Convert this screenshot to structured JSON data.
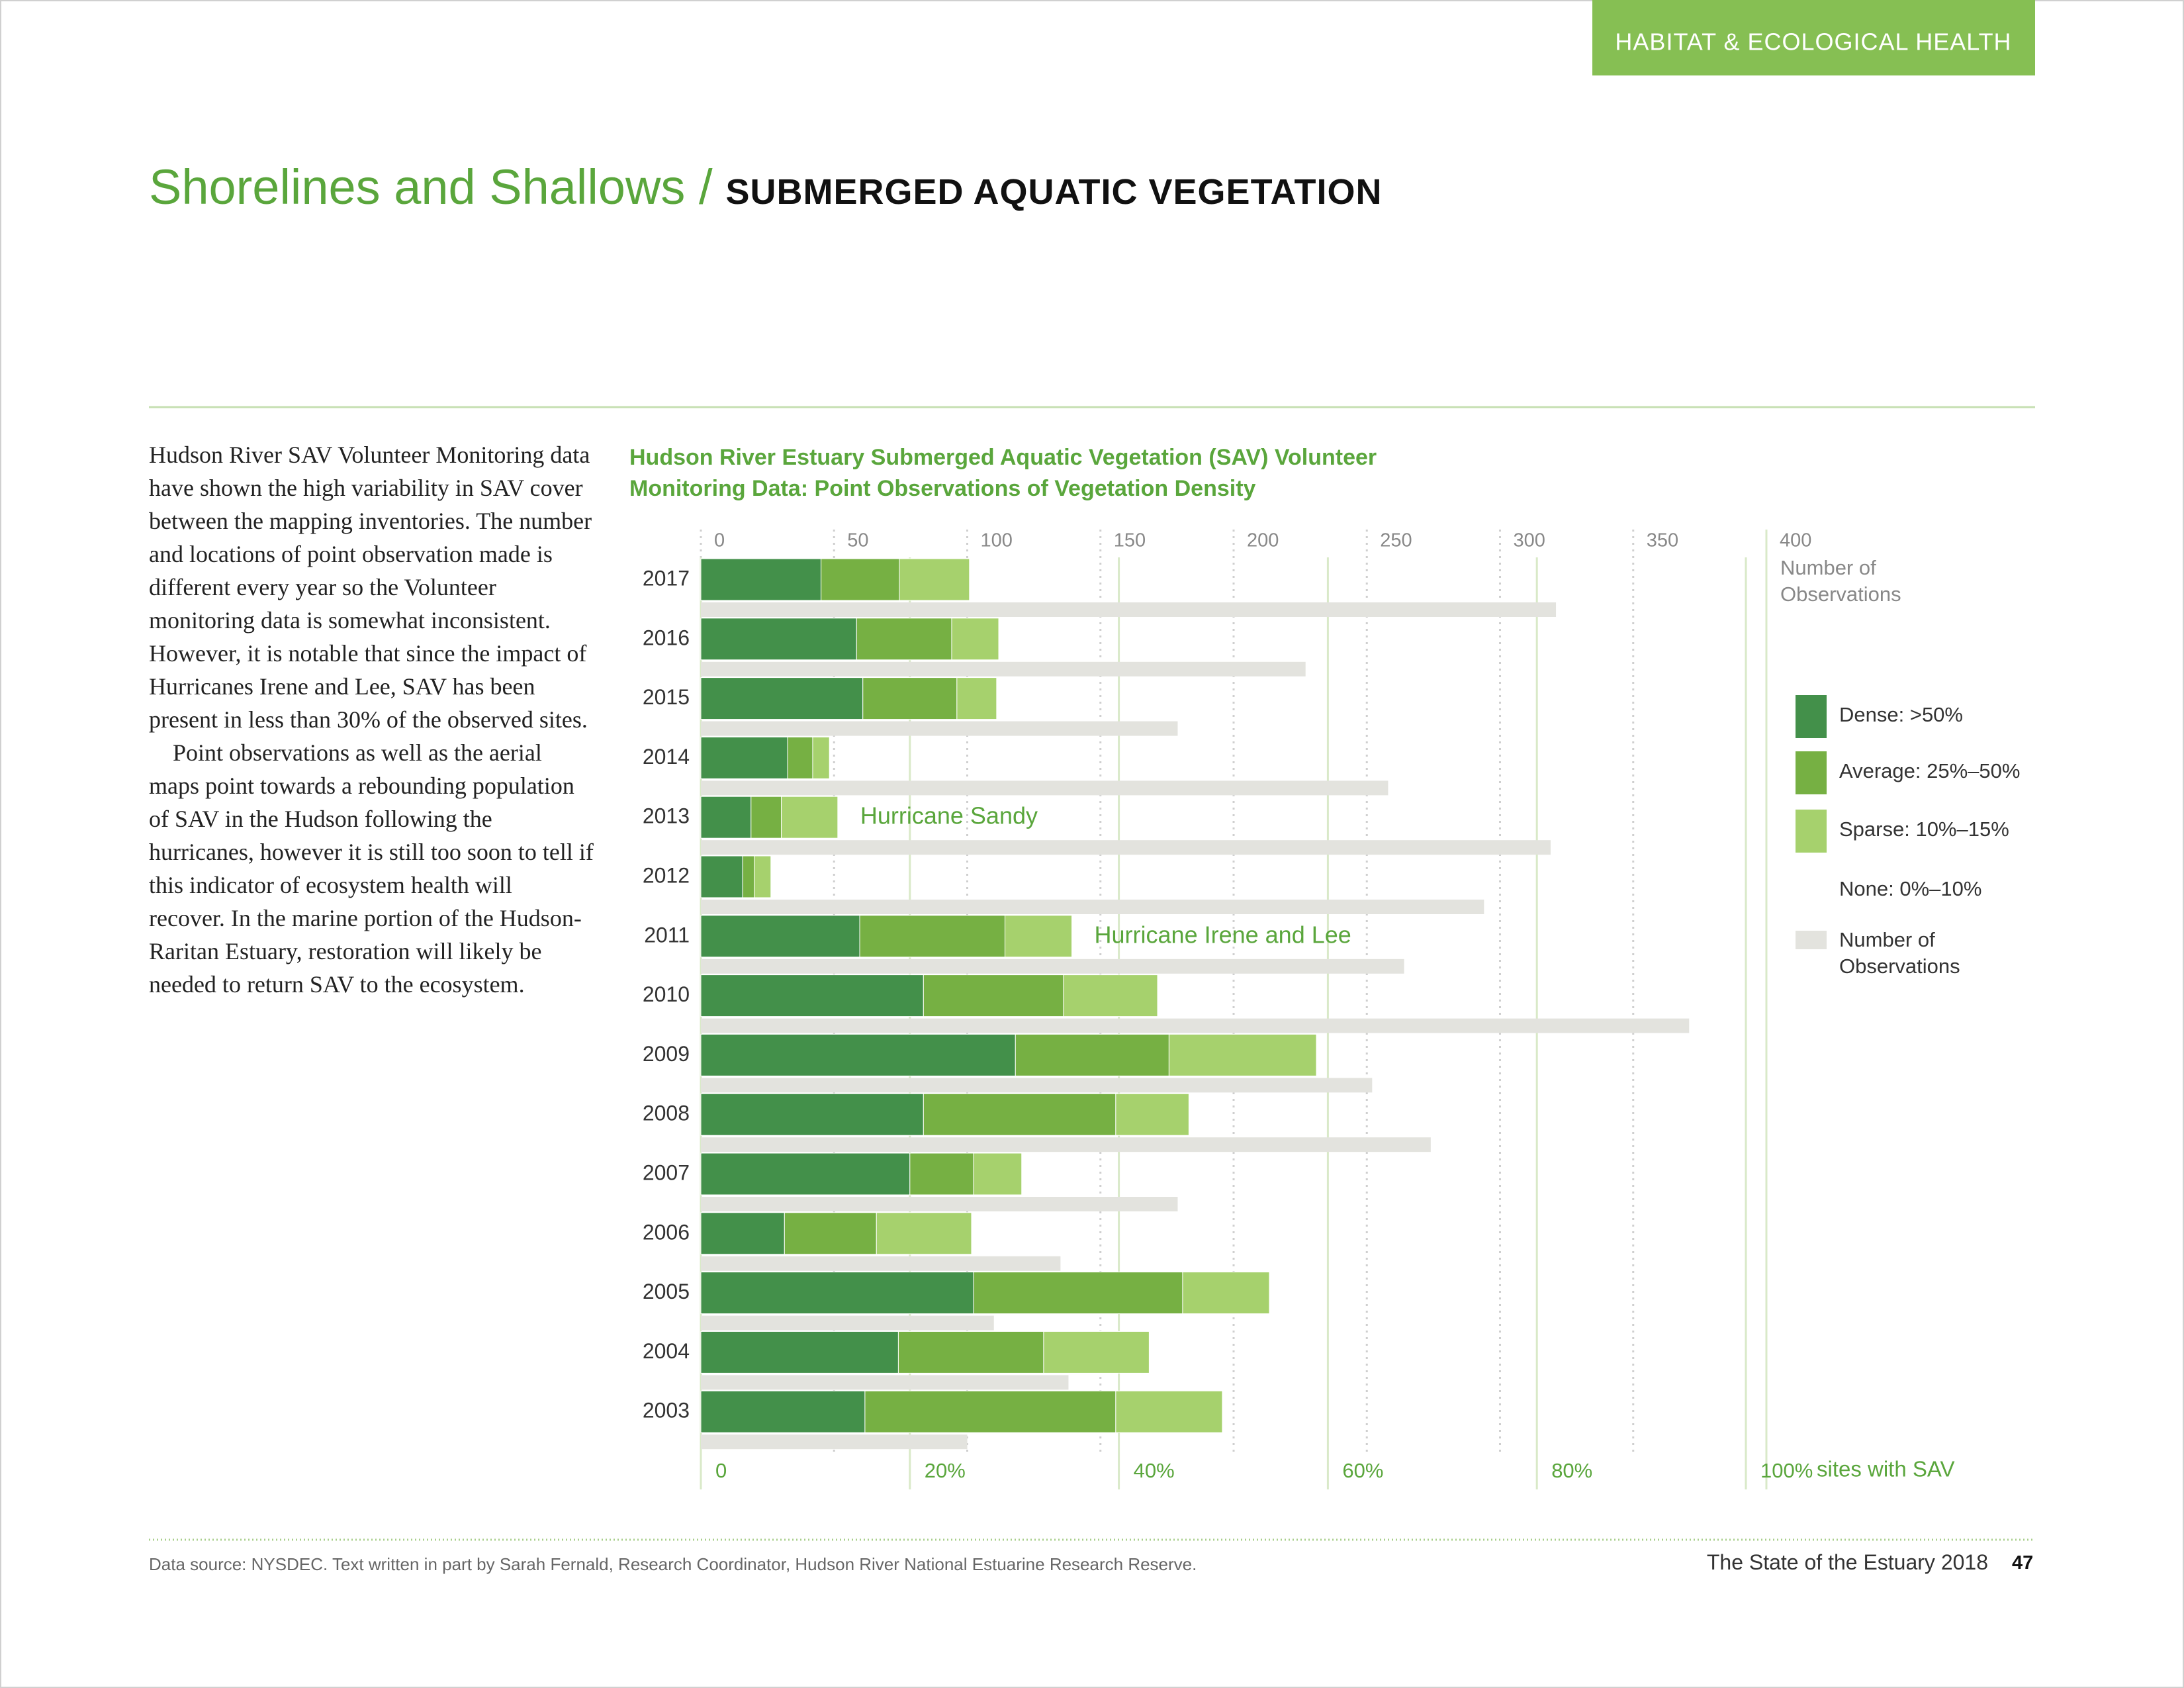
{
  "header": {
    "section": "HABITAT & ECOLOGICAL HEALTH",
    "title": "Shorelines and Shallows /",
    "subtitle": "SUBMERGED AQUATIC VEGETATION"
  },
  "body": [
    "Hudson River SAV Volunteer Monitoring data have shown the high variability in SAV cover between the mapping inventories. The number and locations of point observation made is different every year so the Volunteer monitoring data is somewhat inconsistent. However, it is notable that since the impact of Hurricanes Irene and Lee, SAV has been present in less than 30% of the observed sites.",
    "Point observations as well as the aerial maps point towards a rebounding population of SAV in the Hudson following the hurricanes, however it is still too soon to tell if this indicator of ecosystem health will recover. In the marine portion of the Hudson-Raritan Estuary, restoration will likely be needed to return SAV to the ecosystem."
  ],
  "chart_data": {
    "type": "bar",
    "orientation": "horizontal",
    "stacked": true,
    "title": "Hudson River Estuary Submerged Aquatic Vegetation (SAV) Volunteer Monitoring Data: Point Observations of Vegetation Density",
    "categories": [
      "2017",
      "2016",
      "2015",
      "2014",
      "2013",
      "2012",
      "2011",
      "2010",
      "2009",
      "2008",
      "2007",
      "2006",
      "2005",
      "2004",
      "2003"
    ],
    "series": [
      {
        "name": "Dense: >50%",
        "color": "#43904a",
        "values": [
          11.5,
          14.9,
          15.5,
          8.3,
          4.8,
          4,
          15.2,
          21.3,
          30.1,
          21.3,
          20,
          8,
          26.1,
          18.9,
          15.7
        ]
      },
      {
        "name": "Average: 25%–50%",
        "color": "#76b043",
        "values": [
          7.5,
          9.1,
          9,
          2.4,
          2.9,
          1.1,
          13.9,
          13.4,
          14.7,
          18.4,
          6.1,
          8.8,
          20,
          13.9,
          24
        ]
      },
      {
        "name": "Sparse: 10%–15%",
        "color": "#a6d16d",
        "values": [
          6.7,
          4.5,
          3.8,
          1.6,
          5.4,
          1.6,
          6.4,
          9,
          14.1,
          7,
          4.6,
          9.1,
          8.3,
          10.1,
          10.2
        ]
      },
      {
        "name": "Number of Observations",
        "color": "#e3e3de",
        "axis": "x2",
        "values": [
          321,
          227,
          179,
          258,
          319,
          294,
          264,
          371,
          252,
          274,
          179,
          135,
          110,
          138,
          100
        ]
      }
    ],
    "extra_legend": [
      {
        "name": "None: 0%–10%",
        "color": "#ffffff"
      }
    ],
    "xlim": [
      0,
      100
    ],
    "xticks": [
      0,
      {
        "value": 20,
        "label": "20%"
      },
      {
        "value": 40,
        "label": "40%"
      },
      {
        "value": 60,
        "label": "60%"
      },
      {
        "value": 80,
        "label": "80%"
      },
      {
        "value": 100,
        "label": "100%"
      }
    ],
    "xlabel": "sites with SAV",
    "x2lim": [
      0,
      400
    ],
    "x2ticks": [
      0,
      50,
      100,
      150,
      200,
      250,
      300,
      350,
      400
    ],
    "x2label": "Number of Observations",
    "annotations": [
      {
        "text": "Hurricane Sandy",
        "category": "2013"
      },
      {
        "text": "Hurricane Irene and Lee",
        "category": "2011"
      }
    ],
    "grid": true
  },
  "footer": {
    "source": "Data source: NYSDEC. Text written in part by Sarah Fernald, Research Coordinator, Hudson River National Estuarine Research Reserve.",
    "publication": "The State of the Estuary 2018",
    "page": "47"
  }
}
